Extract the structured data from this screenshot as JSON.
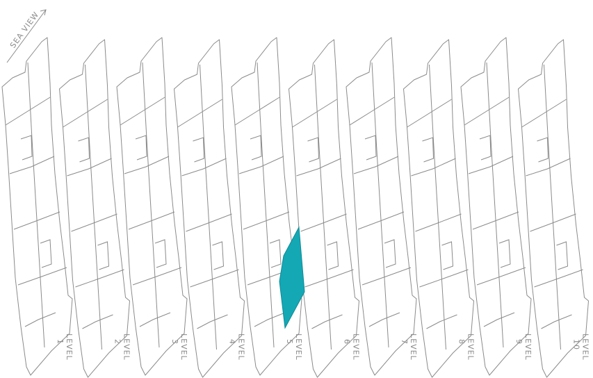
{
  "compass": {
    "label": "SEA VIEW"
  },
  "levels": [
    {
      "label": "LEVEL",
      "number": "1"
    },
    {
      "label": "LEVEL",
      "number": "2"
    },
    {
      "label": "LEVEL",
      "number": "3"
    },
    {
      "label": "LEVEL",
      "number": "4"
    },
    {
      "label": "LEVEL",
      "number": "5"
    },
    {
      "label": "LEVEL",
      "number": "6"
    },
    {
      "label": "LEVEL",
      "number": "7"
    },
    {
      "label": "LEVEL",
      "number": "8"
    },
    {
      "label": "LEVEL",
      "number": "9"
    },
    {
      "label": "LEVEL",
      "number": "10"
    }
  ]
}
